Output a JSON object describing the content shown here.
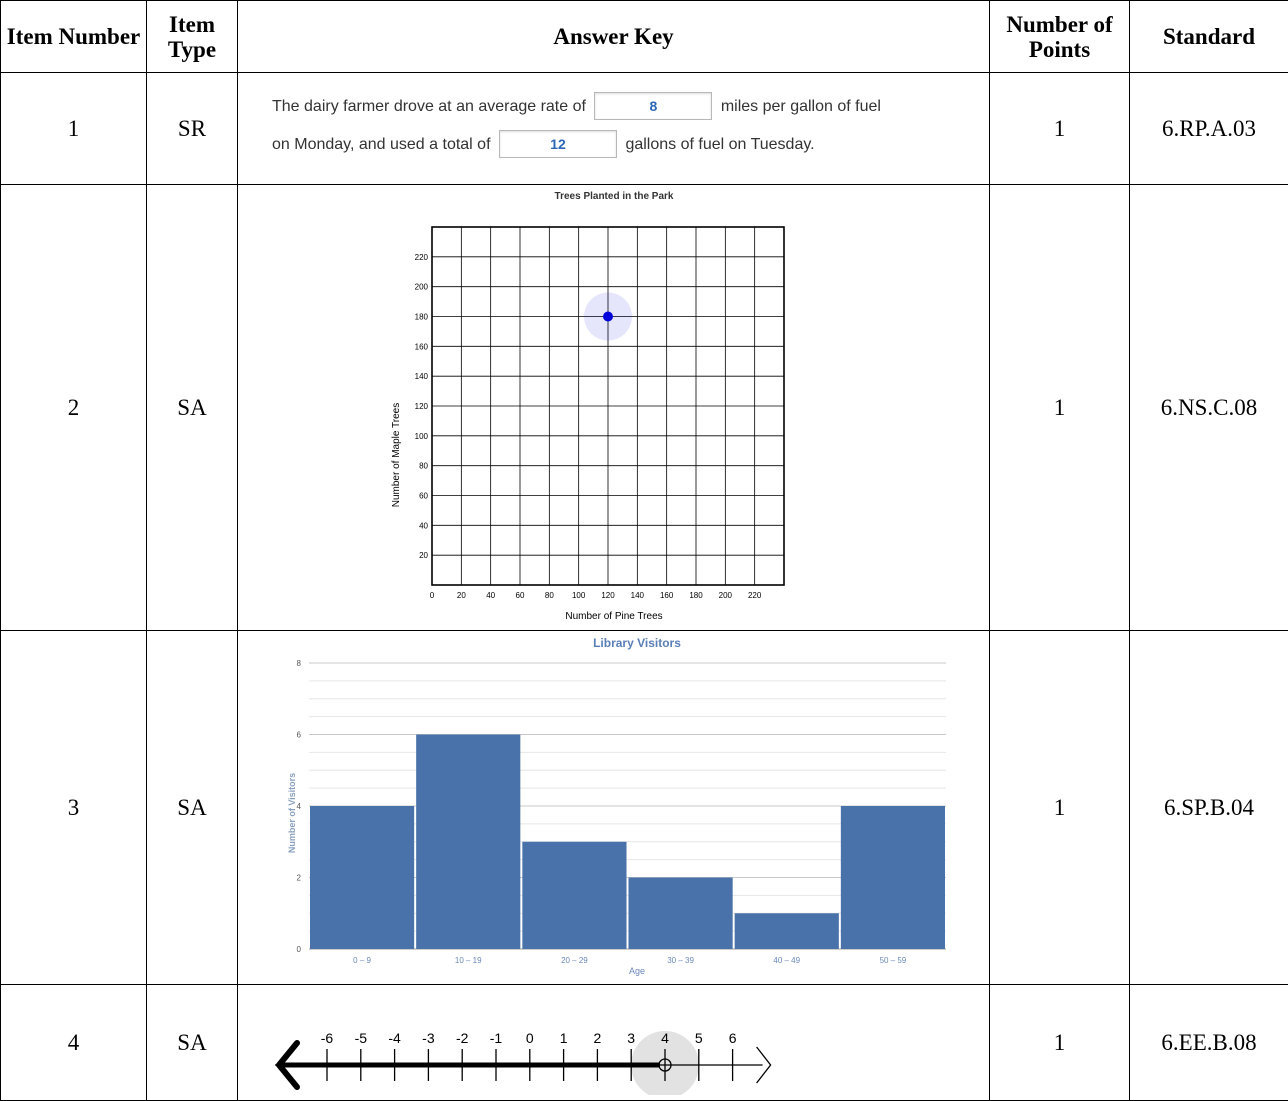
{
  "headers": {
    "item_number": "Item Number",
    "item_type": "Item Type",
    "answer_key": "Answer Key",
    "points": "Number of Points",
    "standard": "Standard"
  },
  "rows": [
    {
      "number": "1",
      "type": "SR",
      "points": "1",
      "standard": "6.RP.A.03"
    },
    {
      "number": "2",
      "type": "SA",
      "points": "1",
      "standard": "6.NS.C.08"
    },
    {
      "number": "3",
      "type": "SA",
      "points": "1",
      "standard": "6.SP.B.04"
    },
    {
      "number": "4",
      "type": "SA",
      "points": "1",
      "standard": "6.EE.B.08"
    }
  ],
  "item1": {
    "text_a": "The dairy farmer drove at an average rate of",
    "answer_a": "8",
    "text_b": "miles per gallon of fuel",
    "text_c": "on Monday, and used a total of",
    "answer_b": "12",
    "text_d": "gallons of fuel on Tuesday."
  },
  "chart_data": [
    {
      "type": "scatter",
      "title": "Trees Planted in the Park",
      "xlabel": "Number of Pine Trees",
      "ylabel": "Number of Maple Trees",
      "xlim": [
        0,
        240
      ],
      "ylim": [
        0,
        240
      ],
      "x_ticks": [
        0,
        20,
        40,
        60,
        80,
        100,
        120,
        140,
        160,
        180,
        200,
        220
      ],
      "y_ticks": [
        20,
        40,
        60,
        80,
        100,
        120,
        140,
        160,
        180,
        200,
        220
      ],
      "grid": true,
      "points": [
        {
          "x": 120,
          "y": 180
        }
      ],
      "point_color": "#0000dd"
    },
    {
      "type": "bar",
      "title": "Library Visitors",
      "xlabel": "Age",
      "ylabel": "Number of Visitors",
      "categories": [
        "0 – 9",
        "10 – 19",
        "20 – 29",
        "30 – 39",
        "40 – 49",
        "50 – 59"
      ],
      "values": [
        4,
        6,
        3,
        2,
        1,
        4
      ],
      "ylim": [
        0,
        8
      ],
      "y_ticks": [
        0,
        2,
        4,
        6,
        8
      ],
      "grid": true,
      "bar_color": "#4a72aa"
    },
    {
      "type": "number-line",
      "tick_labels": [
        -6,
        -5,
        -4,
        -3,
        -2,
        -1,
        0,
        1,
        2,
        3,
        4,
        5,
        6
      ],
      "point": 4,
      "point_style": "open circle",
      "shaded": "left of point"
    }
  ]
}
